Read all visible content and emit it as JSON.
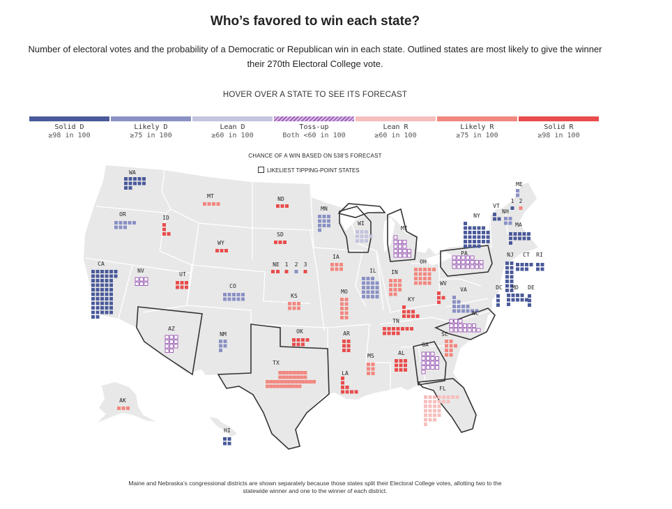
{
  "title": "Who’s favored to win each state?",
  "subtitle": "Number of electoral votes and the probability of a Democratic or Republican win in each state. Outlined states are most likely to give the winner their 270th Electoral College vote.",
  "hover_prompt": "HOVER OVER A STATE TO SEE ITS FORECAST",
  "legend": [
    {
      "label": "Solid D",
      "sub": "≥98 in 100",
      "color": "#4a5a9a",
      "key": "solidD"
    },
    {
      "label": "Likely D",
      "sub": "≥75 in 100",
      "color": "#8a91c4",
      "key": "likelyD"
    },
    {
      "label": "Lean D",
      "sub": "≥60 in 100",
      "color": "#c3c4de",
      "key": "leanD"
    },
    {
      "label": "Toss-up",
      "sub": "Both <60 in 100",
      "color": "#9f62b8",
      "key": "toss"
    },
    {
      "label": "Lean R",
      "sub": "≥60 in 100",
      "color": "#f6bfbe",
      "key": "leanR"
    },
    {
      "label": "Likely R",
      "sub": "≥75 in 100",
      "color": "#f2877f",
      "key": "likelyR"
    },
    {
      "label": "Solid R",
      "sub": "≥98 in 100",
      "color": "#e94c4c",
      "key": "solidR"
    }
  ],
  "chance_label": "CHANCE OF A WIN BASED ON 538’S FORECAST",
  "tipping_label": "LIKELIEST TIPPING-POINT STATES",
  "states": [
    {
      "abbr": "WA",
      "ev": 12,
      "rating": "solidD",
      "tipping": false
    },
    {
      "abbr": "OR",
      "ev": 8,
      "rating": "likelyD",
      "tipping": false
    },
    {
      "abbr": "CA",
      "ev": 54,
      "rating": "solidD",
      "tipping": false
    },
    {
      "abbr": "NV",
      "ev": 6,
      "rating": "toss",
      "tipping": false
    },
    {
      "abbr": "ID",
      "ev": 4,
      "rating": "solidR",
      "tipping": false
    },
    {
      "abbr": "MT",
      "ev": 4,
      "rating": "likelyR",
      "tipping": false
    },
    {
      "abbr": "WY",
      "ev": 3,
      "rating": "solidR",
      "tipping": false
    },
    {
      "abbr": "UT",
      "ev": 6,
      "rating": "solidR",
      "tipping": false
    },
    {
      "abbr": "AZ",
      "ev": 11,
      "rating": "toss",
      "tipping": true
    },
    {
      "abbr": "CO",
      "ev": 10,
      "rating": "likelyD",
      "tipping": false
    },
    {
      "abbr": "NM",
      "ev": 5,
      "rating": "likelyD",
      "tipping": false
    },
    {
      "abbr": "ND",
      "ev": 3,
      "rating": "solidR",
      "tipping": false
    },
    {
      "abbr": "SD",
      "ev": 3,
      "rating": "solidR",
      "tipping": false
    },
    {
      "abbr": "NE",
      "ev": 2,
      "rating": "solidR",
      "tipping": false
    },
    {
      "abbr": "KS",
      "ev": 6,
      "rating": "likelyR",
      "tipping": false
    },
    {
      "abbr": "OK",
      "ev": 7,
      "rating": "solidR",
      "tipping": false
    },
    {
      "abbr": "TX",
      "ev": 40,
      "rating": "likelyR",
      "tipping": true
    },
    {
      "abbr": "MN",
      "ev": 10,
      "rating": "likelyD",
      "tipping": false
    },
    {
      "abbr": "IA",
      "ev": 6,
      "rating": "likelyR",
      "tipping": false
    },
    {
      "abbr": "MO",
      "ev": 10,
      "rating": "likelyR",
      "tipping": false
    },
    {
      "abbr": "AR",
      "ev": 6,
      "rating": "solidR",
      "tipping": false
    },
    {
      "abbr": "LA",
      "ev": 8,
      "rating": "solidR",
      "tipping": false
    },
    {
      "abbr": "WI",
      "ev": 10,
      "rating": "leanD",
      "tipping": true
    },
    {
      "abbr": "IL",
      "ev": 19,
      "rating": "likelyD",
      "tipping": false
    },
    {
      "abbr": "MS",
      "ev": 6,
      "rating": "likelyR",
      "tipping": false
    },
    {
      "abbr": "MI",
      "ev": 15,
      "rating": "toss",
      "tipping": true
    },
    {
      "abbr": "IN",
      "ev": 11,
      "rating": "likelyR",
      "tipping": false
    },
    {
      "abbr": "KY",
      "ev": 8,
      "rating": "solidR",
      "tipping": false
    },
    {
      "abbr": "TN",
      "ev": 11,
      "rating": "solidR",
      "tipping": false
    },
    {
      "abbr": "AL",
      "ev": 9,
      "rating": "solidR",
      "tipping": false
    },
    {
      "abbr": "OH",
      "ev": 17,
      "rating": "likelyR",
      "tipping": false
    },
    {
      "abbr": "WV",
      "ev": 4,
      "rating": "solidR",
      "tipping": false
    },
    {
      "abbr": "GA",
      "ev": 16,
      "rating": "toss",
      "tipping": true
    },
    {
      "abbr": "FL",
      "ev": 30,
      "rating": "leanR",
      "tipping": true
    },
    {
      "abbr": "SC",
      "ev": 9,
      "rating": "likelyR",
      "tipping": false
    },
    {
      "abbr": "NC",
      "ev": 16,
      "rating": "toss",
      "tipping": true
    },
    {
      "abbr": "VA",
      "ev": 13,
      "rating": "likelyD",
      "tipping": false
    },
    {
      "abbr": "PA",
      "ev": 19,
      "rating": "toss",
      "tipping": true
    },
    {
      "abbr": "NY",
      "ev": 28,
      "rating": "solidD",
      "tipping": false
    },
    {
      "abbr": "VT",
      "ev": 3,
      "rating": "solidD",
      "tipping": false
    },
    {
      "abbr": "NH",
      "ev": 4,
      "rating": "likelyD",
      "tipping": false
    },
    {
      "abbr": "ME",
      "ev": 2,
      "rating": "likelyD",
      "tipping": false
    },
    {
      "abbr": "MA",
      "ev": 11,
      "rating": "solidD",
      "tipping": false
    },
    {
      "abbr": "NJ",
      "ev": 14,
      "rating": "solidD",
      "tipping": false
    },
    {
      "abbr": "CT",
      "ev": 7,
      "rating": "solidD",
      "tipping": false
    },
    {
      "abbr": "RI",
      "ev": 4,
      "rating": "solidD",
      "tipping": false
    },
    {
      "abbr": "DC",
      "ev": 3,
      "rating": "solidD",
      "tipping": false
    },
    {
      "abbr": "MD",
      "ev": 10,
      "rating": "solidD",
      "tipping": false
    },
    {
      "abbr": "DE",
      "ev": 3,
      "rating": "solidD",
      "tipping": false
    },
    {
      "abbr": "AK",
      "ev": 3,
      "rating": "likelyR",
      "tipping": false
    },
    {
      "abbr": "HI",
      "ev": 4,
      "rating": "solidD",
      "tipping": false
    }
  ],
  "districts": {
    "ne_label": "NE",
    "ne": [
      {
        "label": "1",
        "rating": "solidR"
      },
      {
        "label": "2",
        "rating": "likelyD"
      },
      {
        "label": "3",
        "rating": "solidR"
      }
    ],
    "me_label": "ME",
    "me": [
      {
        "label": "1",
        "rating": "solidD"
      },
      {
        "label": "2",
        "rating": "likelyR"
      }
    ]
  },
  "footnote": "Maine and Nebraska’s congressional districts are shown separately because those states split their Electoral College votes, allotting two to the statewide winner and one to the winner of each district."
}
